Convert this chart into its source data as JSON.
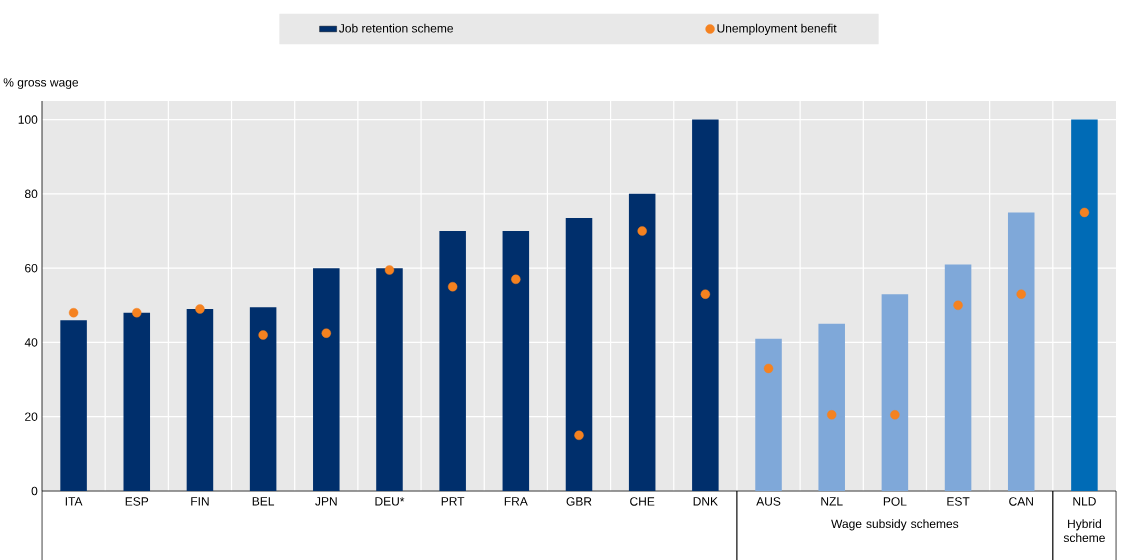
{
  "chart_data": {
    "type": "bar",
    "ylabel": "% gross wage",
    "categories": [
      "ITA",
      "ESP",
      "FIN",
      "BEL",
      "JPN",
      "DEU*",
      "PRT",
      "FRA",
      "GBR",
      "CHE",
      "DNK",
      "AUS",
      "NZL",
      "POL",
      "EST",
      "CAN",
      "NLD"
    ],
    "series": [
      {
        "name": "Job retention scheme",
        "color": "#002f6c",
        "colors": [
          "#002f6c",
          "#002f6c",
          "#002f6c",
          "#002f6c",
          "#002f6c",
          "#002f6c",
          "#002f6c",
          "#002f6c",
          "#002f6c",
          "#002f6c",
          "#002f6c",
          "#7fa8d9",
          "#7fa8d9",
          "#7fa8d9",
          "#7fa8d9",
          "#7fa8d9",
          "#006bb6"
        ],
        "values": [
          46,
          48,
          49,
          49.5,
          60,
          60,
          70,
          70,
          73.5,
          80,
          100,
          41,
          45,
          53,
          61,
          75,
          100
        ]
      },
      {
        "name": "Unemployment benefit",
        "type": "scatter",
        "color": "#f58220",
        "values": [
          48,
          48,
          49,
          42,
          42.5,
          59.5,
          55,
          57,
          15,
          70,
          53,
          33,
          20.5,
          20.5,
          50,
          53,
          75
        ]
      }
    ],
    "ylim": [
      0,
      105
    ],
    "yticks": [
      0,
      20,
      40,
      60,
      80,
      100
    ],
    "grid": true,
    "legend": "top",
    "annotations": [
      "Wage subsidy schemes",
      "Hybrid scheme"
    ]
  }
}
